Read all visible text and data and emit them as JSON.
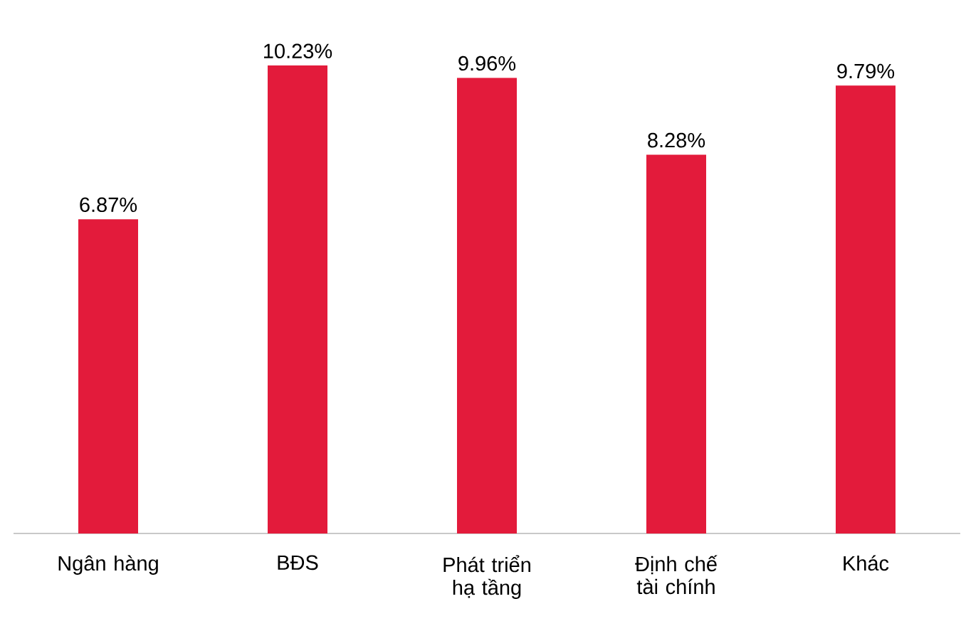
{
  "chart_data": {
    "type": "bar",
    "categories": [
      "Ngân hàng",
      "BĐS",
      "Phát triển hạ tầng",
      "Định chế tài chính",
      "Khác"
    ],
    "values": [
      6.87,
      10.23,
      9.96,
      8.28,
      9.79
    ],
    "value_labels": [
      "6.87%",
      "10.23%",
      "9.96%",
      "8.28%",
      "9.79%"
    ],
    "color": "#e31b3b",
    "tick_labels": "x"
  }
}
